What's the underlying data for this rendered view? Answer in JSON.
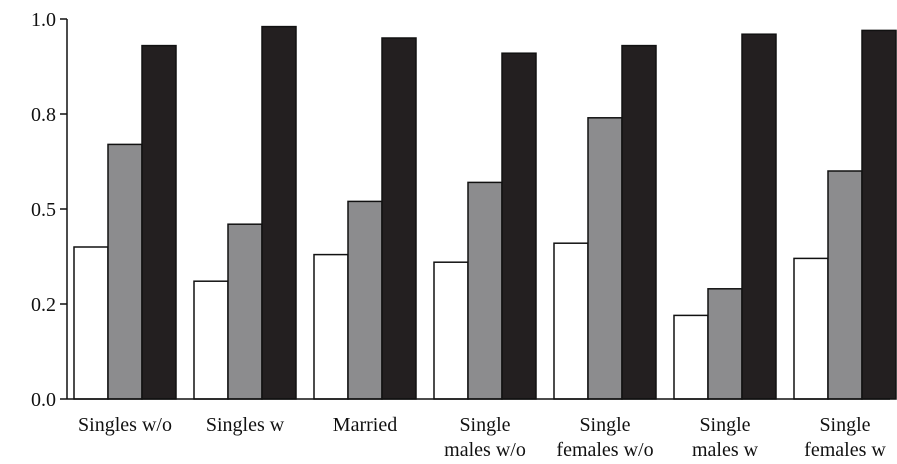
{
  "chart_data": {
    "type": "bar",
    "categories": [
      [
        "Singles w/o"
      ],
      [
        "Singles w"
      ],
      [
        "Married"
      ],
      [
        "Single",
        "males w/o"
      ],
      [
        "Single",
        "females w/o"
      ],
      [
        "Single",
        "males w"
      ],
      [
        "Single",
        "females w"
      ]
    ],
    "series": [
      {
        "color": "#ffffff",
        "values": [
          0.4,
          0.31,
          0.38,
          0.36,
          0.41,
          0.22,
          0.37
        ]
      },
      {
        "color": "#8c8c8e",
        "values": [
          0.67,
          0.46,
          0.52,
          0.57,
          0.74,
          0.29,
          0.6
        ]
      },
      {
        "color": "#231f20",
        "values": [
          0.93,
          0.98,
          0.95,
          0.91,
          0.93,
          0.96,
          0.97
        ]
      }
    ],
    "ylim": [
      0,
      1.0
    ],
    "yticks": [
      0.0,
      0.25,
      0.5,
      0.75,
      1.0
    ],
    "ytick_labels": [
      "0.0",
      "0.2",
      "0.5",
      "0.8",
      "1.0"
    ],
    "grid": false,
    "title": "",
    "xlabel": "",
    "ylabel": ""
  }
}
